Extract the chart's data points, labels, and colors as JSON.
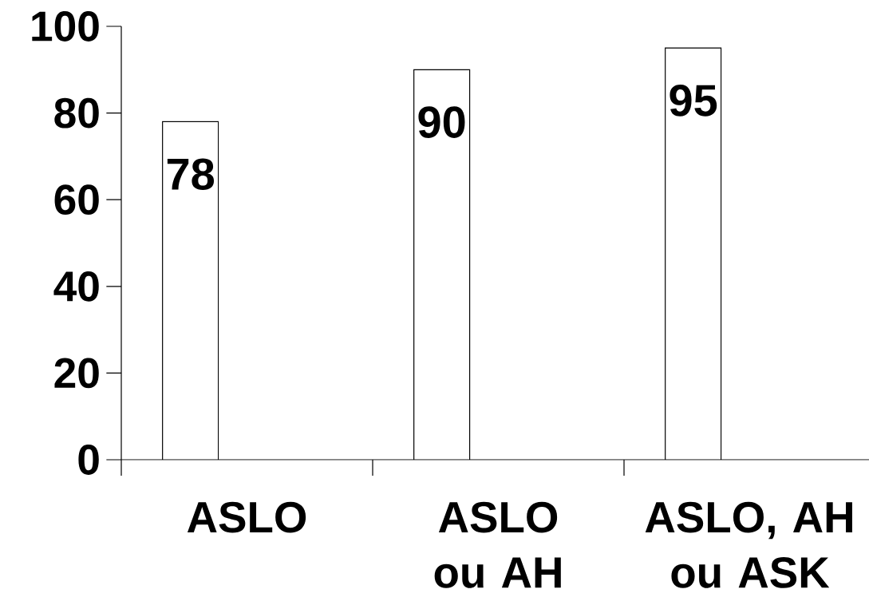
{
  "chart_data": {
    "type": "bar",
    "categories": [
      "ASLO",
      "ASLO ou AH",
      "ASLO, AH ou ASK"
    ],
    "values": [
      78,
      90,
      95
    ],
    "color": "#ffffff",
    "ylim": [
      0,
      100
    ],
    "yticks": [
      0,
      20,
      40,
      60,
      80,
      100
    ],
    "data_labels": true,
    "grid": false
  }
}
